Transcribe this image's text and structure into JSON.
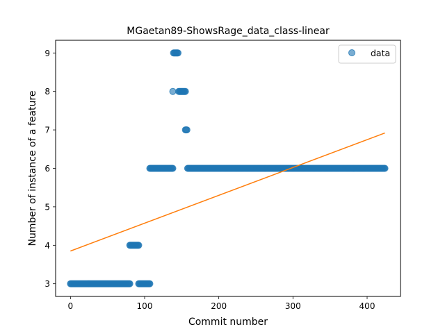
{
  "chart_data": {
    "type": "scatter",
    "title": "MGaetan89-ShowsRage_data_class-linear",
    "xlabel": "Commit number",
    "ylabel": "Number of instance of a feature",
    "xlim": [
      -20,
      445
    ],
    "ylim": [
      2.67,
      9.33
    ],
    "xticks": [
      0,
      100,
      200,
      300,
      400
    ],
    "yticks": [
      3,
      4,
      5,
      6,
      7,
      8,
      9
    ],
    "grid": false,
    "legend_position": "top-right",
    "series": [
      {
        "name": "data",
        "kind": "scatter",
        "color": "#1f77b4",
        "segments": [
          {
            "x_start": 0,
            "x_end": 80,
            "y": 3
          },
          {
            "x_start": 80,
            "x_end": 92,
            "y": 4
          },
          {
            "x_start": 92,
            "x_end": 107,
            "y": 3
          },
          {
            "x_start": 107,
            "x_end": 138,
            "y": 6
          },
          {
            "x_start": 138,
            "x_end": 138,
            "y": 8
          },
          {
            "x_start": 139,
            "x_end": 145,
            "y": 9
          },
          {
            "x_start": 146,
            "x_end": 155,
            "y": 8
          },
          {
            "x_start": 155,
            "x_end": 157,
            "y": 7
          },
          {
            "x_start": 158,
            "x_end": 424,
            "y": 6
          }
        ]
      },
      {
        "kind": "line",
        "color": "#ff7f0e",
        "x": [
          0,
          424
        ],
        "y": [
          3.85,
          6.92
        ]
      }
    ]
  }
}
